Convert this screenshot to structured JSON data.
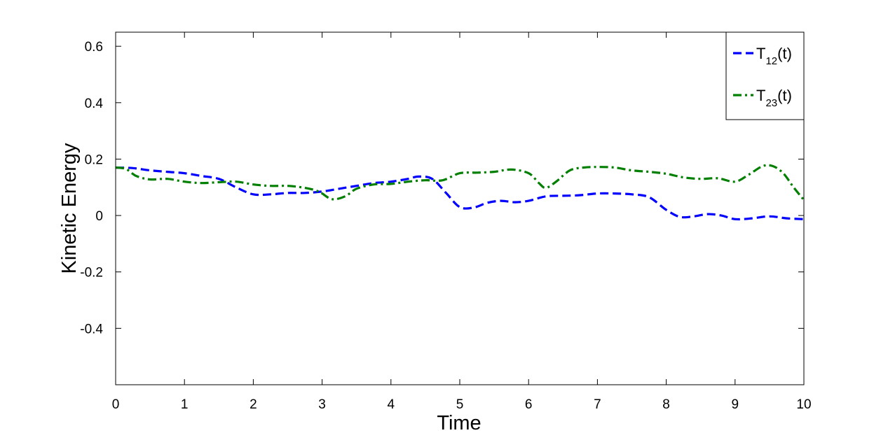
{
  "chart_data": {
    "type": "line",
    "xlabel": "Time",
    "ylabel": "Kinetic Energy",
    "xlim": [
      0,
      10
    ],
    "ylim": [
      -0.6,
      0.65
    ],
    "x_ticks": [
      0,
      1,
      2,
      3,
      4,
      5,
      6,
      7,
      8,
      9,
      10
    ],
    "x_tick_labels": [
      "0",
      "1",
      "2",
      "3",
      "4",
      "5",
      "6",
      "7",
      "8",
      "9",
      "10"
    ],
    "y_ticks": [
      -0.4,
      -0.2,
      0,
      0.2,
      0.4,
      0.6
    ],
    "y_tick_labels": [
      "-0.4",
      "-0.2",
      "0",
      "0.2",
      "0.4",
      "0.6"
    ],
    "grid": false,
    "legend_position": "top-right",
    "series": [
      {
        "name": "T12(t)",
        "label_main": "T",
        "label_sub": "12",
        "label_suffix": "(t)",
        "color": "#0000ff",
        "dash": "dashed",
        "x": [
          0,
          0.25,
          0.5,
          0.75,
          1.0,
          1.25,
          1.5,
          1.75,
          2.0,
          2.25,
          2.5,
          2.75,
          3.0,
          3.25,
          3.5,
          3.75,
          4.0,
          4.25,
          4.4,
          4.6,
          4.8,
          5.0,
          5.2,
          5.4,
          5.6,
          5.8,
          6.0,
          6.25,
          6.5,
          6.75,
          7.0,
          7.25,
          7.5,
          7.75,
          8.0,
          8.2,
          8.4,
          8.6,
          8.8,
          9.0,
          9.25,
          9.5,
          9.75,
          10.0
        ],
        "y": [
          0.17,
          0.168,
          0.16,
          0.155,
          0.15,
          0.14,
          0.13,
          0.1,
          0.075,
          0.075,
          0.08,
          0.08,
          0.085,
          0.095,
          0.105,
          0.115,
          0.12,
          0.13,
          0.138,
          0.13,
          0.08,
          0.03,
          0.028,
          0.045,
          0.052,
          0.047,
          0.052,
          0.068,
          0.07,
          0.072,
          0.078,
          0.078,
          0.075,
          0.065,
          0.02,
          -0.005,
          -0.003,
          0.005,
          0.0,
          -0.013,
          -0.01,
          -0.003,
          -0.01,
          -0.013
        ]
      },
      {
        "name": "T23(t)",
        "label_main": "T",
        "label_sub": "23",
        "label_suffix": "(t)",
        "color": "#007f00",
        "dash": "dash-dot",
        "x": [
          0,
          0.15,
          0.3,
          0.5,
          0.75,
          1.0,
          1.25,
          1.5,
          1.75,
          2.0,
          2.25,
          2.5,
          2.75,
          2.95,
          3.1,
          3.2,
          3.35,
          3.5,
          3.75,
          4.0,
          4.25,
          4.5,
          4.75,
          5.0,
          5.25,
          5.5,
          5.75,
          6.0,
          6.15,
          6.25,
          6.4,
          6.6,
          6.8,
          7.0,
          7.25,
          7.5,
          7.75,
          8.0,
          8.25,
          8.5,
          8.75,
          9.0,
          9.2,
          9.4,
          9.55,
          9.7,
          9.85,
          10.0
        ],
        "y": [
          0.17,
          0.165,
          0.14,
          0.128,
          0.13,
          0.12,
          0.115,
          0.118,
          0.12,
          0.11,
          0.105,
          0.105,
          0.098,
          0.085,
          0.062,
          0.058,
          0.07,
          0.095,
          0.11,
          0.112,
          0.12,
          0.125,
          0.125,
          0.15,
          0.152,
          0.155,
          0.163,
          0.15,
          0.115,
          0.098,
          0.12,
          0.16,
          0.17,
          0.172,
          0.17,
          0.16,
          0.155,
          0.148,
          0.135,
          0.13,
          0.132,
          0.12,
          0.145,
          0.175,
          0.175,
          0.15,
          0.1,
          0.055
        ]
      }
    ]
  }
}
